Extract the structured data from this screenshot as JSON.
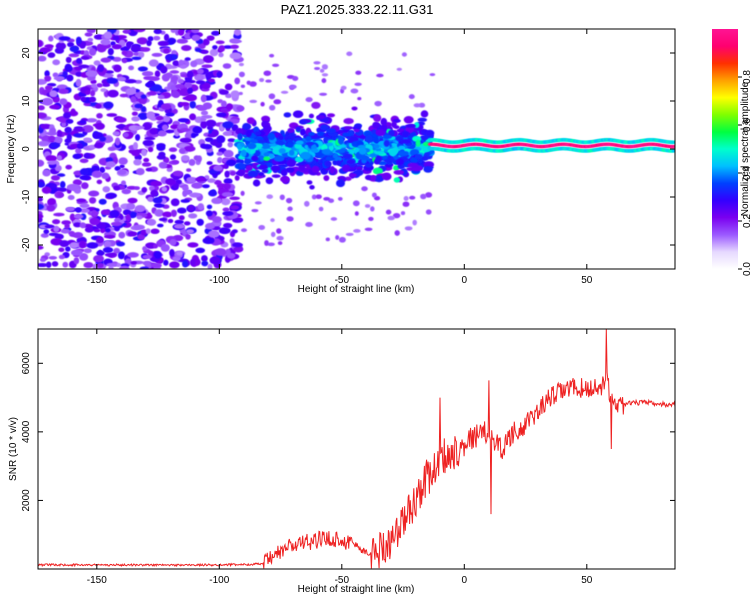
{
  "figure_title": "PAZ1.2025.333.22.11.G31",
  "chart_data": [
    {
      "type": "heatmap",
      "title": "PAZ1.2025.333.22.11.G31",
      "xlabel": "Height of straight line (km)",
      "ylabel": "Frequency (Hz)",
      "xlim": [
        -174,
        86
      ],
      "ylim": [
        -25,
        25
      ],
      "xticks": [
        -150,
        -100,
        -50,
        0,
        50
      ],
      "yticks": [
        -20,
        -10,
        0,
        10,
        20
      ],
      "colorbar": {
        "label": "Normalized spectral amplitude",
        "range": [
          0,
          1
        ],
        "ticks": [
          0.0,
          0.2,
          0.4,
          0.6,
          0.8
        ],
        "tick_labels": [
          "0.0",
          "0.2",
          "0.4",
          "0.6",
          "0.8"
        ],
        "colormap": [
          "#ffffff",
          "#e6d9ff",
          "#9b59ff",
          "#7a00f0",
          "#3300ff",
          "#0040ff",
          "#00c0ff",
          "#00ffcc",
          "#00ff40",
          "#80ff00",
          "#ffff00",
          "#ffa000",
          "#ff3000",
          "#ff0070",
          "#ff1493"
        ]
      },
      "regions": [
        {
          "x_range": [
            -174,
            -92
          ],
          "freq_range": [
            -25,
            25
          ],
          "level": "0.1-0.3",
          "pattern": "scattered noise"
        },
        {
          "x_range": [
            -92,
            -14
          ],
          "freq_range": [
            -8,
            8
          ],
          "level": "0.2-0.55",
          "pattern": "broadband signal"
        },
        {
          "x_range": [
            -14,
            86
          ],
          "freq_range": [
            0,
            1.5
          ],
          "level": "0.9-1.0",
          "pattern": "narrow carrier line"
        }
      ]
    },
    {
      "type": "line",
      "xlabel": "Height of straight line (km)",
      "ylabel": "SNR (10 * v/v)",
      "xlim": [
        -174,
        86
      ],
      "ylim": [
        0,
        7000
      ],
      "xticks": [
        -150,
        -100,
        -50,
        0,
        50
      ],
      "yticks": [
        2000,
        4000,
        6000
      ],
      "line_color": "#ee2222",
      "series": [
        {
          "name": "SNR",
          "x": [
            -174,
            -160,
            -140,
            -120,
            -100,
            -90,
            -82,
            -78,
            -72,
            -66,
            -60,
            -54,
            -48,
            -44,
            -40,
            -36,
            -32,
            -28,
            -24,
            -20,
            -16,
            -12,
            -10,
            -6,
            0,
            5,
            10,
            15,
            20,
            25,
            30,
            35,
            40,
            45,
            50,
            55,
            58,
            60,
            62,
            65,
            70,
            75,
            80,
            86
          ],
          "values": [
            120,
            120,
            120,
            115,
            120,
            130,
            150,
            350,
            650,
            750,
            850,
            900,
            800,
            700,
            450,
            500,
            700,
            1000,
            1500,
            2000,
            2600,
            2900,
            3300,
            3300,
            3700,
            3900,
            4000,
            3500,
            4000,
            4200,
            4600,
            5000,
            5200,
            5300,
            5250,
            5300,
            5500,
            5000,
            4800,
            4800,
            4850,
            4850,
            4800,
            4800
          ],
          "spikes": [
            {
              "x": -10,
              "value": 5000
            },
            {
              "x": 10,
              "value": 5500
            },
            {
              "x": 11,
              "value": 1600
            },
            {
              "x": 58,
              "value": 7100
            },
            {
              "x": 60,
              "value": 3500
            }
          ]
        }
      ]
    }
  ]
}
